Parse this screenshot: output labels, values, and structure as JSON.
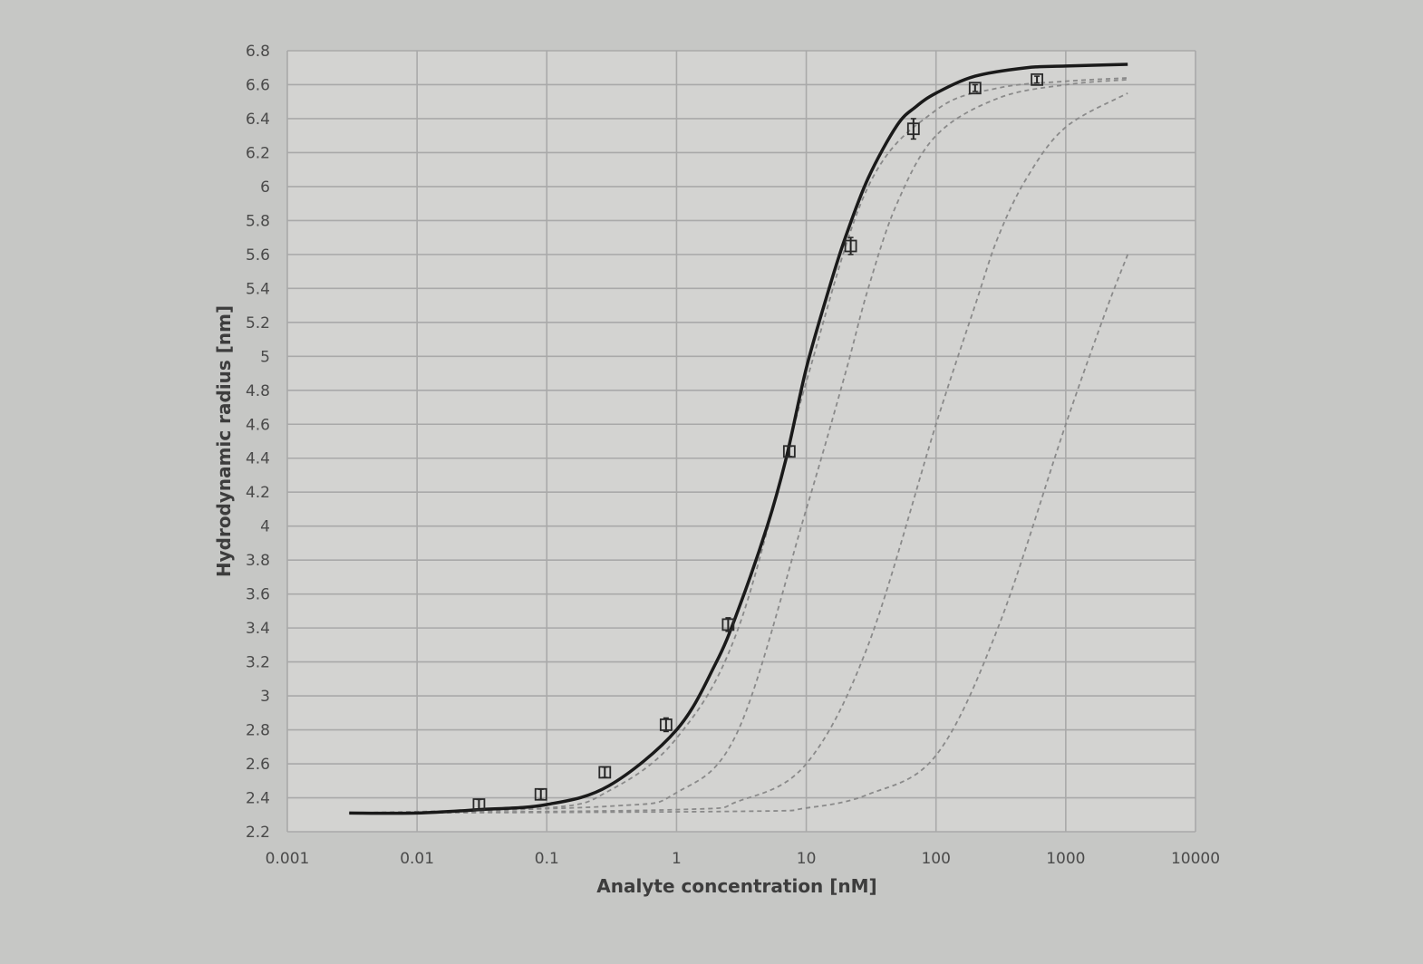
{
  "chart_data": {
    "type": "scatter",
    "xlabel": "Analyte concentration [nM]",
    "ylabel": "Hydrodynamic radius [nm]",
    "x_scale": "log",
    "xlim": [
      0.001,
      10000
    ],
    "ylim": [
      2.2,
      6.8
    ],
    "x_ticks": [
      "0.001",
      "0.01",
      "0.1",
      "1",
      "10",
      "100",
      "1000",
      "10000"
    ],
    "y_ticks": [
      "2.2",
      "2.4",
      "2.6",
      "2.8",
      "3",
      "3.2",
      "3.4",
      "3.6",
      "3.8",
      "4",
      "4.2",
      "4.4",
      "4.6",
      "4.8",
      "5",
      "5.2",
      "5.4",
      "5.6",
      "5.8",
      "6",
      "6.2",
      "6.4",
      "6.6",
      "6.8"
    ],
    "grid": true,
    "colors": {
      "background": "#c6c7c5",
      "plot_area": "#d3d3d1",
      "grid": "#a9a9a9",
      "fit": "#1a1a1a",
      "simulated": "#8a8a8a"
    },
    "measured_points": [
      {
        "x": 0.03,
        "y": 2.36,
        "err": 0.03
      },
      {
        "x": 0.09,
        "y": 2.42,
        "err": 0.03
      },
      {
        "x": 0.28,
        "y": 2.55,
        "err": 0.03
      },
      {
        "x": 0.83,
        "y": 2.83,
        "err": 0.04
      },
      {
        "x": 2.5,
        "y": 3.42,
        "err": 0.04
      },
      {
        "x": 7.4,
        "y": 4.44,
        "err": 0.03
      },
      {
        "x": 22,
        "y": 5.65,
        "err": 0.05
      },
      {
        "x": 67,
        "y": 6.34,
        "err": 0.06
      },
      {
        "x": 200,
        "y": 6.58,
        "err": 0.02
      },
      {
        "x": 600,
        "y": 6.63,
        "err": 0.02
      }
    ],
    "fit_curve": {
      "x": [
        0.003,
        0.01,
        0.03,
        0.1,
        0.3,
        1,
        2,
        3,
        5,
        7,
        10,
        15,
        20,
        30,
        50,
        70,
        100,
        200,
        500,
        1000,
        3000
      ],
      "y": [
        2.31,
        2.31,
        2.33,
        2.36,
        2.47,
        2.8,
        3.19,
        3.51,
        4.0,
        4.4,
        4.93,
        5.4,
        5.7,
        6.05,
        6.36,
        6.47,
        6.55,
        6.65,
        6.7,
        6.71,
        6.72
      ]
    },
    "simulated_curves": [
      {
        "x": [
          0.003,
          0.1,
          0.3,
          1,
          3,
          10,
          30,
          100,
          300,
          1000,
          3000
        ],
        "y": [
          2.31,
          2.34,
          2.44,
          2.75,
          3.4,
          4.85,
          6.0,
          6.45,
          6.58,
          6.62,
          6.64
        ]
      },
      {
        "x": [
          0.003,
          0.3,
          1,
          3,
          10,
          20,
          30,
          50,
          100,
          300,
          1000,
          3000
        ],
        "y": [
          2.31,
          2.35,
          2.43,
          2.8,
          4.1,
          4.9,
          5.4,
          5.9,
          6.3,
          6.52,
          6.6,
          6.63
        ]
      },
      {
        "x": [
          0.003,
          1,
          3,
          10,
          30,
          100,
          200,
          300,
          500,
          1000,
          3000
        ],
        "y": [
          2.31,
          2.33,
          2.38,
          2.6,
          3.3,
          4.6,
          5.3,
          5.7,
          6.05,
          6.35,
          6.55
        ]
      },
      {
        "x": [
          0.003,
          3,
          10,
          30,
          100,
          300,
          1000,
          2000,
          3000
        ],
        "y": [
          2.31,
          2.32,
          2.34,
          2.42,
          2.65,
          3.4,
          4.6,
          5.25,
          5.6
        ]
      }
    ]
  }
}
